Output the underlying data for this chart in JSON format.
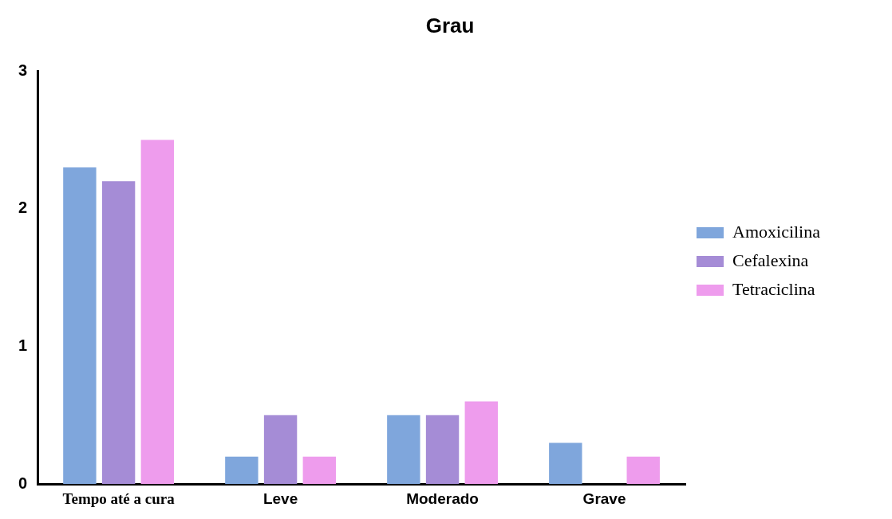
{
  "chart_data": {
    "type": "bar",
    "title": "Grau",
    "categories": [
      "Tempo até a cura",
      "Leve",
      "Moderado",
      "Grave"
    ],
    "series": [
      {
        "name": "Amoxicilina",
        "color": "#7fa6dc",
        "values": [
          2.3,
          0.2,
          0.5,
          0.3
        ]
      },
      {
        "name": "Cefalexina",
        "color": "#a58cd6",
        "values": [
          2.2,
          0.5,
          0.5,
          null
        ]
      },
      {
        "name": "Tetraciclina",
        "color": "#ee9ced",
        "values": [
          2.5,
          0.2,
          0.6,
          0.2
        ]
      }
    ],
    "ylim": [
      0,
      3
    ],
    "yticks": [
      0,
      1,
      2,
      3
    ],
    "grid": false,
    "legend": "right"
  }
}
